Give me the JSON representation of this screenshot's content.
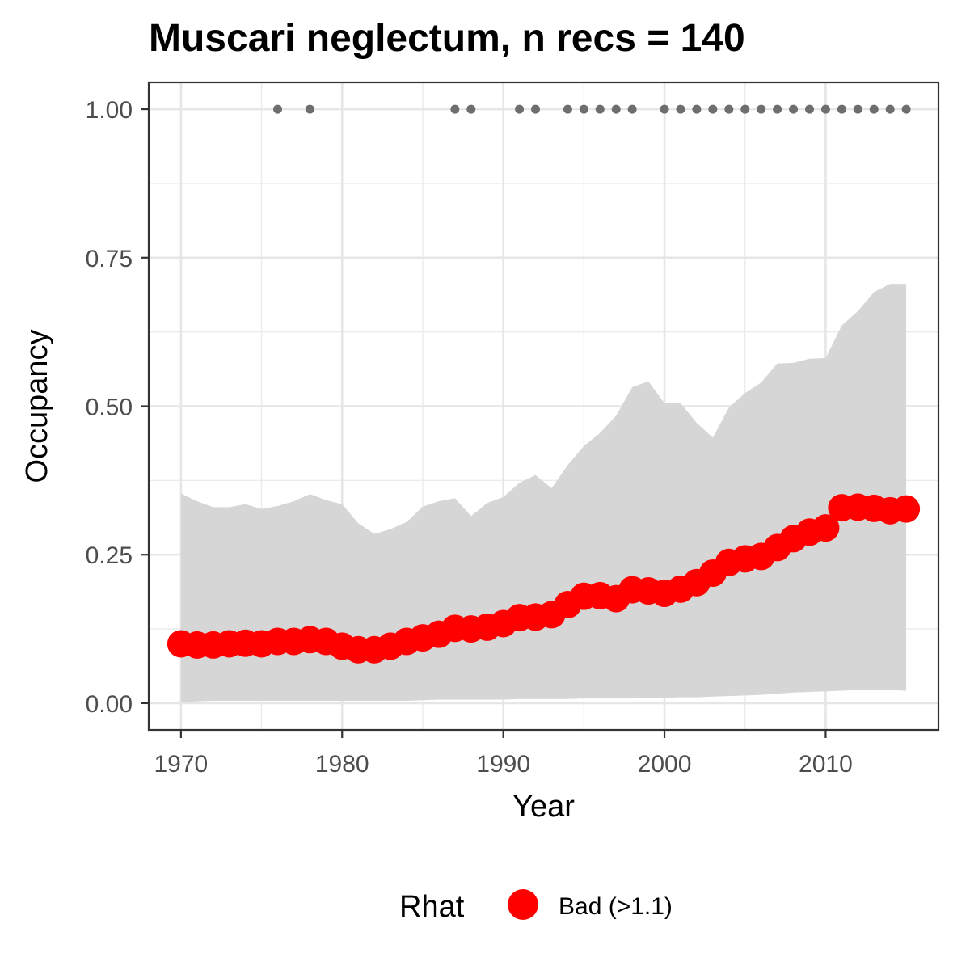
{
  "chart_data": {
    "type": "line",
    "title": "Muscari neglectum, n recs = 140",
    "xlabel": "Year",
    "ylabel": "Occupancy",
    "xlim": [
      1968,
      2017
    ],
    "ylim": [
      -0.045,
      1.045
    ],
    "x_ticks": [
      1970,
      1980,
      1990,
      2000,
      2010
    ],
    "x_tick_labels": [
      "1970",
      "1980",
      "1990",
      "2000",
      "2010"
    ],
    "y_ticks": [
      0,
      0.25,
      0.5,
      0.75,
      1.0
    ],
    "y_tick_labels": [
      "0.00",
      "0.25",
      "0.50",
      "0.75",
      "1.00"
    ],
    "grid": true,
    "legend_position": "bottom",
    "legend": {
      "title": "Rhat",
      "entries": [
        {
          "label": "Bad (>1.1)",
          "color": "#ff0000"
        }
      ]
    },
    "colors": {
      "series": "#ff0000",
      "ribbon": "#d6d6d6",
      "records": "#6e6e6e"
    },
    "x": [
      1970,
      1971,
      1972,
      1973,
      1974,
      1975,
      1976,
      1977,
      1978,
      1979,
      1980,
      1981,
      1982,
      1983,
      1984,
      1985,
      1986,
      1987,
      1988,
      1989,
      1990,
      1991,
      1992,
      1993,
      1994,
      1995,
      1996,
      1997,
      1998,
      1999,
      2000,
      2001,
      2002,
      2003,
      2004,
      2005,
      2006,
      2007,
      2008,
      2009,
      2010,
      2011,
      2012,
      2013,
      2014,
      2015
    ],
    "series": [
      {
        "values": [
          0.1,
          0.098,
          0.098,
          0.1,
          0.101,
          0.1,
          0.104,
          0.104,
          0.107,
          0.104,
          0.096,
          0.09,
          0.09,
          0.096,
          0.104,
          0.11,
          0.116,
          0.126,
          0.125,
          0.128,
          0.134,
          0.144,
          0.145,
          0.149,
          0.166,
          0.18,
          0.181,
          0.176,
          0.191,
          0.189,
          0.185,
          0.192,
          0.203,
          0.219,
          0.237,
          0.243,
          0.247,
          0.262,
          0.277,
          0.288,
          0.295,
          0.329,
          0.33,
          0.328,
          0.324,
          0.327
        ]
      }
    ],
    "ribbon": {
      "upper": [
        0.353,
        0.34,
        0.33,
        0.33,
        0.335,
        0.327,
        0.332,
        0.34,
        0.352,
        0.342,
        0.335,
        0.303,
        0.285,
        0.293,
        0.305,
        0.331,
        0.34,
        0.345,
        0.315,
        0.337,
        0.347,
        0.371,
        0.384,
        0.362,
        0.401,
        0.433,
        0.455,
        0.484,
        0.532,
        0.542,
        0.505,
        0.505,
        0.472,
        0.447,
        0.498,
        0.522,
        0.54,
        0.572,
        0.573,
        0.58,
        0.581,
        0.636,
        0.66,
        0.692,
        0.706,
        0.706
      ],
      "lower": [
        0.002,
        0.003,
        0.004,
        0.004,
        0.004,
        0.004,
        0.004,
        0.004,
        0.004,
        0.004,
        0.004,
        0.004,
        0.004,
        0.004,
        0.004,
        0.005,
        0.006,
        0.006,
        0.006,
        0.006,
        0.006,
        0.007,
        0.007,
        0.007,
        0.007,
        0.008,
        0.008,
        0.008,
        0.008,
        0.009,
        0.009,
        0.01,
        0.01,
        0.011,
        0.012,
        0.013,
        0.014,
        0.016,
        0.018,
        0.019,
        0.02,
        0.021,
        0.022,
        0.022,
        0.022,
        0.021
      ]
    },
    "record_years": [
      1976,
      1978,
      1987,
      1988,
      1991,
      1992,
      1994,
      1995,
      1996,
      1997,
      1998,
      2000,
      2001,
      2002,
      2003,
      2004,
      2005,
      2006,
      2007,
      2008,
      2009,
      2010,
      2011,
      2012,
      2013,
      2014,
      2015
    ],
    "record_value": 1.0
  }
}
